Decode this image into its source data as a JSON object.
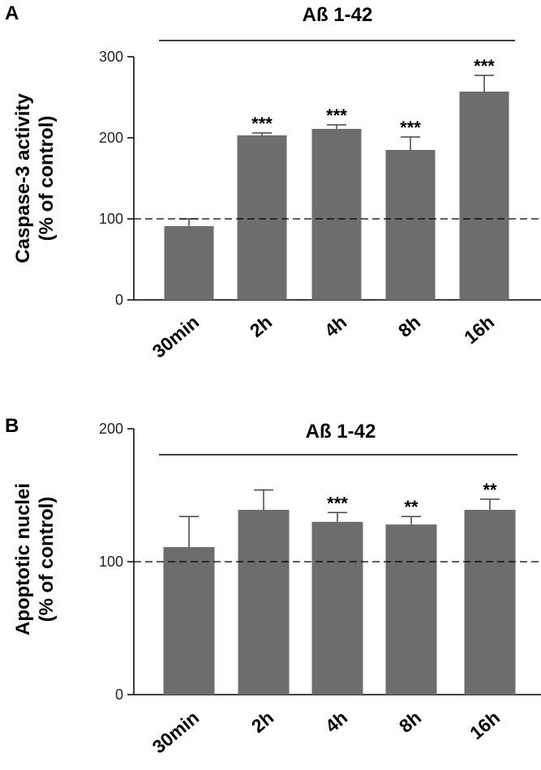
{
  "chart_data": [
    {
      "panel": "A",
      "type": "bar",
      "title": "Aß 1-42",
      "ylabel": "Caspase-3 activity",
      "ylabel_sub": "(% of control)",
      "xlabel": "",
      "categories": [
        "30min",
        "2h",
        "4h",
        "8h",
        "16h"
      ],
      "values": [
        91,
        203,
        211,
        185,
        257
      ],
      "errors": [
        9,
        3,
        5,
        16,
        20
      ],
      "significance": [
        "",
        "***",
        "***",
        "***",
        "***"
      ],
      "ylim": [
        0,
        300
      ],
      "yticks": [
        0,
        100,
        200,
        300
      ],
      "reference_line": 100,
      "bar_color": "#6d6d6d"
    },
    {
      "panel": "B",
      "type": "bar",
      "title": "Aß 1-42",
      "ylabel": "Apoptotic nuclei",
      "ylabel_sub": "(% of control)",
      "xlabel": "",
      "categories": [
        "30min",
        "2h",
        "4h",
        "8h",
        "16h"
      ],
      "values": [
        111,
        139,
        130,
        128,
        139
      ],
      "errors": [
        23,
        15,
        7,
        6,
        8
      ],
      "significance": [
        "",
        "",
        "***",
        "**",
        "**"
      ],
      "ylim": [
        0,
        200
      ],
      "yticks": [
        0,
        100,
        200
      ],
      "reference_line": 100,
      "bar_color": "#6d6d6d"
    }
  ]
}
